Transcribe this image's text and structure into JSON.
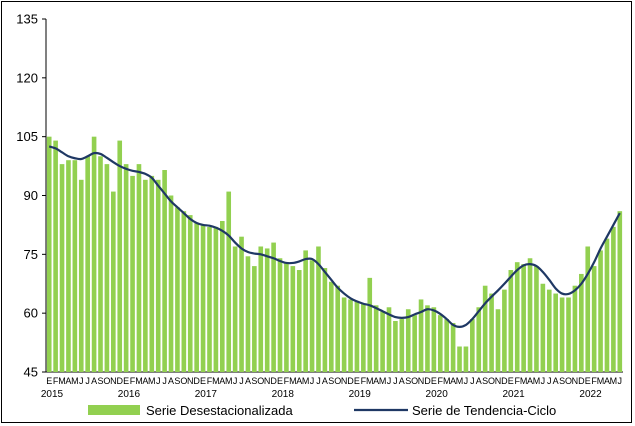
{
  "chart_data": {
    "type": "bar",
    "title": "",
    "xlabel": "",
    "ylabel": "",
    "ylim": [
      45,
      135
    ],
    "yticks": [
      45,
      60,
      75,
      90,
      105,
      120,
      135
    ],
    "year_labels": [
      "2015",
      "2016",
      "2017",
      "2018",
      "2019",
      "2020",
      "2021",
      "2022"
    ],
    "month_letters": [
      "E",
      "F",
      "M",
      "A",
      "M",
      "J",
      "J",
      "A",
      "S",
      "O",
      "N",
      "D"
    ],
    "grid": false,
    "legend_position": "bottom",
    "colors": {
      "bars": "#92D050",
      "trend": "#1F3864"
    },
    "series": [
      {
        "name": "Serie Desestacionalizada",
        "kind": "bar",
        "values": [
          105.0,
          104.0,
          98.0,
          99.0,
          99.0,
          94.0,
          100.0,
          105.0,
          100.0,
          98.0,
          91.0,
          104.0,
          98.0,
          95.0,
          98.0,
          94.0,
          95.0,
          94.0,
          96.5,
          90.0,
          87.0,
          86.0,
          85.0,
          83.0,
          82.5,
          82.0,
          82.0,
          83.5,
          91.0,
          77.0,
          79.5,
          74.5,
          72.0,
          77.0,
          76.5,
          78.0,
          74.0,
          73.0,
          72.0,
          71.0,
          76.0,
          73.5,
          77.0,
          71.5,
          68.0,
          67.0,
          64.0,
          63.5,
          63.0,
          62.5,
          69.0,
          62.0,
          60.5,
          61.5,
          58.0,
          58.5,
          61.0,
          59.5,
          63.5,
          62.0,
          61.5,
          59.5,
          58.5,
          57.5,
          51.5,
          51.5,
          58.5,
          61.5,
          67.0,
          65.0,
          61.0,
          66.0,
          71.0,
          73.0,
          72.5,
          74.0,
          72.0,
          67.5,
          66.0,
          65.0,
          64.0,
          64.0,
          67.0,
          70.0,
          77.0,
          72.0,
          76.0,
          79.0,
          82.0,
          86.0
        ]
      },
      {
        "name": "Serie de Tendencia-Ciclo",
        "kind": "line",
        "values": [
          102.5,
          102.0,
          101.0,
          100.0,
          99.5,
          99.3,
          100.0,
          100.8,
          100.6,
          99.6,
          98.5,
          97.5,
          96.8,
          96.3,
          96.0,
          95.5,
          94.5,
          92.5,
          90.5,
          88.5,
          87.0,
          85.5,
          84.0,
          83.0,
          82.5,
          82.3,
          81.8,
          81.0,
          79.8,
          78.0,
          76.5,
          75.6,
          75.2,
          75.0,
          74.5,
          74.0,
          73.3,
          72.8,
          72.8,
          73.2,
          73.8,
          73.8,
          72.5,
          70.5,
          68.5,
          66.5,
          65.0,
          63.8,
          63.0,
          62.4,
          62.0,
          61.3,
          60.5,
          59.7,
          59.0,
          58.8,
          59.0,
          59.7,
          60.3,
          61.0,
          60.7,
          59.8,
          58.5,
          57.0,
          56.5,
          57.0,
          58.5,
          60.5,
          62.5,
          64.2,
          65.8,
          67.5,
          69.3,
          71.0,
          72.2,
          72.5,
          72.0,
          70.5,
          68.5,
          66.3,
          65.0,
          64.9,
          65.8,
          67.5,
          70.0,
          73.0,
          76.5,
          79.5,
          82.5,
          85.5
        ]
      }
    ]
  }
}
